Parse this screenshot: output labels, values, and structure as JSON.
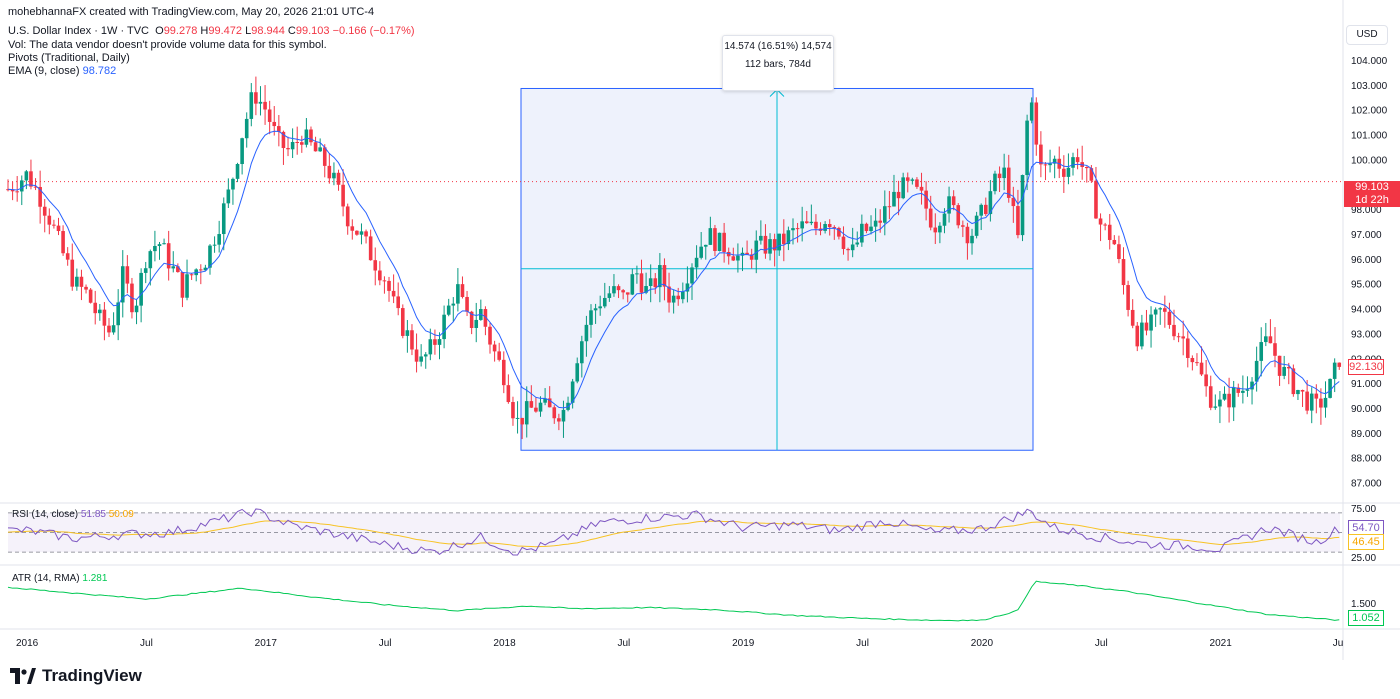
{
  "header": {
    "credit": "mohebhannaFX created with TradingView.com, May 20, 2026 21:01 UTC-4",
    "symbol": "U.S. Dollar Index · 1W · TVC",
    "o_label": "O",
    "o_value": "99.278",
    "h_label": "H",
    "h_value": "99.472",
    "l_label": "L",
    "l_value": "98.944",
    "c_label": "C",
    "c_value": "99.103",
    "change": "−0.166 (−0.17%)",
    "vol_note": "Vol: The data vendor doesn't provide volume data for this symbol.",
    "pivots": "Pivots (Traditional, Daily)",
    "ema_label": "EMA (9, close)",
    "ema_value": "98.782"
  },
  "currency_button": "USD",
  "measure": {
    "line1": "14.574 (16.51%) 14,574",
    "line2": "112 bars, 784d"
  },
  "price_tags": {
    "last": "99.103",
    "countdown": "1d 22h",
    "right_edge": "92.130"
  },
  "rsi": {
    "label": "RSI (14, close)",
    "value1": "51.85",
    "value2": "50.09",
    "tag1": "54.70",
    "tag2": "46.45"
  },
  "atr": {
    "label": "ATR (14, RMA)",
    "value": "1.281",
    "tag": "1.052"
  },
  "brand": "TradingView",
  "colors": {
    "up": "#089981",
    "down": "#f23645",
    "ema": "#2962ff",
    "rsi": "#7e57c2",
    "rsi_ma": "#f7c325",
    "atr": "#00c853",
    "measure_fill": "#e8edfb",
    "measure_border": "#2962ff",
    "crosshair": "#00bcd4"
  },
  "chart_data": [
    {
      "type": "candlestick",
      "title": "U.S. Dollar Index · 1W · TVC",
      "ylabel": "",
      "ylim": [
        86.5,
        104.8
      ],
      "yticks": [
        "87.000",
        "88.000",
        "89.000",
        "90.000",
        "91.000",
        "92.000",
        "93.000",
        "94.000",
        "95.000",
        "96.000",
        "97.000",
        "98.000",
        "99.000",
        "100.000",
        "101.000",
        "102.000",
        "103.000",
        "104.000"
      ],
      "x_tick_labels": [
        "2016",
        "Jul",
        "2017",
        "Jul",
        "2018",
        "Jul",
        "2019",
        "Jul",
        "2020",
        "Jul",
        "2021",
        "Ju"
      ],
      "close_path": [
        [
          2015.92,
          98.8
        ],
        [
          2016.0,
          99.4
        ],
        [
          2016.05,
          98.6
        ],
        [
          2016.1,
          97.5
        ],
        [
          2016.15,
          96.2
        ],
        [
          2016.2,
          95.0
        ],
        [
          2016.25,
          94.6
        ],
        [
          2016.3,
          93.6
        ],
        [
          2016.35,
          93.0
        ],
        [
          2016.4,
          95.3
        ],
        [
          2016.45,
          94.0
        ],
        [
          2016.5,
          96.2
        ],
        [
          2016.55,
          96.7
        ],
        [
          2016.6,
          95.8
        ],
        [
          2016.65,
          94.8
        ],
        [
          2016.7,
          95.5
        ],
        [
          2016.75,
          96.0
        ],
        [
          2016.8,
          97.3
        ],
        [
          2016.85,
          98.8
        ],
        [
          2016.9,
          101.0
        ],
        [
          2016.95,
          102.7
        ],
        [
          2017.0,
          102.0
        ],
        [
          2017.05,
          100.7
        ],
        [
          2017.1,
          100.3
        ],
        [
          2017.15,
          101.0
        ],
        [
          2017.2,
          100.4
        ],
        [
          2017.25,
          99.8
        ],
        [
          2017.3,
          98.8
        ],
        [
          2017.35,
          97.5
        ],
        [
          2017.4,
          96.9
        ],
        [
          2017.45,
          96.0
        ],
        [
          2017.5,
          95.2
        ],
        [
          2017.55,
          93.7
        ],
        [
          2017.6,
          92.8
        ],
        [
          2017.65,
          91.8
        ],
        [
          2017.7,
          92.5
        ],
        [
          2017.75,
          93.6
        ],
        [
          2017.8,
          94.9
        ],
        [
          2017.85,
          93.3
        ],
        [
          2017.9,
          93.9
        ],
        [
          2017.95,
          92.4
        ],
        [
          2018.0,
          91.3
        ],
        [
          2018.05,
          89.4
        ],
        [
          2018.1,
          89.9
        ],
        [
          2018.15,
          90.1
        ],
        [
          2018.2,
          89.8
        ],
        [
          2018.25,
          89.9
        ],
        [
          2018.3,
          92.0
        ],
        [
          2018.35,
          93.6
        ],
        [
          2018.4,
          94.3
        ],
        [
          2018.45,
          94.7
        ],
        [
          2018.5,
          94.4
        ],
        [
          2018.55,
          95.5
        ],
        [
          2018.6,
          94.6
        ],
        [
          2018.65,
          95.4
        ],
        [
          2018.7,
          94.3
        ],
        [
          2018.75,
          95.1
        ],
        [
          2018.8,
          96.2
        ],
        [
          2018.85,
          97.0
        ],
        [
          2018.9,
          96.6
        ],
        [
          2018.95,
          96.4
        ],
        [
          2019.0,
          95.8
        ],
        [
          2019.05,
          96.5
        ],
        [
          2019.1,
          96.5
        ],
        [
          2019.15,
          96.6
        ],
        [
          2019.2,
          97.0
        ],
        [
          2019.25,
          97.3
        ],
        [
          2019.3,
          97.2
        ],
        [
          2019.35,
          97.7
        ],
        [
          2019.4,
          97.2
        ],
        [
          2019.45,
          96.1
        ],
        [
          2019.5,
          97.1
        ],
        [
          2019.55,
          97.2
        ],
        [
          2019.6,
          98.0
        ],
        [
          2019.65,
          98.8
        ],
        [
          2019.7,
          98.9
        ],
        [
          2019.75,
          98.4
        ],
        [
          2019.8,
          97.3
        ],
        [
          2019.85,
          98.3
        ],
        [
          2019.9,
          97.7
        ],
        [
          2019.95,
          96.9
        ],
        [
          2020.0,
          97.8
        ],
        [
          2020.05,
          99.0
        ],
        [
          2020.1,
          99.5
        ],
        [
          2020.15,
          96.7
        ],
        [
          2020.2,
          102.8
        ],
        [
          2020.25,
          99.4
        ],
        [
          2020.3,
          100.0
        ],
        [
          2020.35,
          99.6
        ],
        [
          2020.4,
          100.2
        ],
        [
          2020.45,
          99.0
        ],
        [
          2020.5,
          97.3
        ],
        [
          2020.55,
          96.8
        ],
        [
          2020.6,
          94.6
        ],
        [
          2020.65,
          92.9
        ],
        [
          2020.7,
          93.2
        ],
        [
          2020.75,
          93.9
        ],
        [
          2020.8,
          93.3
        ],
        [
          2020.85,
          92.7
        ],
        [
          2020.9,
          91.7
        ],
        [
          2020.95,
          90.5
        ],
        [
          2021.0,
          90.1
        ],
        [
          2021.05,
          90.5
        ],
        [
          2021.1,
          90.8
        ],
        [
          2021.15,
          91.9
        ],
        [
          2021.2,
          92.8
        ],
        [
          2021.25,
          91.6
        ],
        [
          2021.3,
          91.0
        ],
        [
          2021.35,
          90.4
        ],
        [
          2021.4,
          90.0
        ],
        [
          2021.45,
          90.6
        ],
        [
          2021.5,
          92.1
        ]
      ]
    },
    {
      "type": "line",
      "title": "RSI (14, close)",
      "ylim": [
        22,
        77
      ],
      "yticks": [
        "25.00",
        "75.00"
      ],
      "values_path": [
        [
          2016.0,
          52
        ],
        [
          2016.2,
          44
        ],
        [
          2016.4,
          48
        ],
        [
          2016.6,
          50
        ],
        [
          2016.8,
          62
        ],
        [
          2016.95,
          72
        ],
        [
          2017.1,
          58
        ],
        [
          2017.3,
          48
        ],
        [
          2017.5,
          38
        ],
        [
          2017.7,
          30
        ],
        [
          2017.9,
          45
        ],
        [
          2018.05,
          30
        ],
        [
          2018.2,
          38
        ],
        [
          2018.4,
          60
        ],
        [
          2018.6,
          65
        ],
        [
          2018.8,
          68
        ],
        [
          2019.0,
          55
        ],
        [
          2019.2,
          58
        ],
        [
          2019.4,
          52
        ],
        [
          2019.6,
          62
        ],
        [
          2019.8,
          50
        ],
        [
          2020.0,
          54
        ],
        [
          2020.2,
          72
        ],
        [
          2020.3,
          55
        ],
        [
          2020.5,
          45
        ],
        [
          2020.7,
          38
        ],
        [
          2020.9,
          36
        ],
        [
          2021.0,
          33
        ],
        [
          2021.2,
          55
        ],
        [
          2021.4,
          40
        ],
        [
          2021.5,
          54.7
        ]
      ]
    },
    {
      "type": "line",
      "title": "ATR (14, RMA)",
      "ylim": [
        0.8,
        2.4
      ],
      "yticks": [
        "1.500"
      ],
      "values_path": [
        [
          2015.92,
          1.9
        ],
        [
          2016.2,
          1.75
        ],
        [
          2016.5,
          1.6
        ],
        [
          2016.9,
          1.88
        ],
        [
          2017.2,
          1.65
        ],
        [
          2017.5,
          1.45
        ],
        [
          2017.8,
          1.3
        ],
        [
          2018.1,
          1.42
        ],
        [
          2018.3,
          1.35
        ],
        [
          2018.6,
          1.38
        ],
        [
          2018.9,
          1.32
        ],
        [
          2019.2,
          1.18
        ],
        [
          2019.5,
          1.1
        ],
        [
          2019.8,
          1.05
        ],
        [
          2020.0,
          1.05
        ],
        [
          2020.15,
          1.3
        ],
        [
          2020.22,
          2.05
        ],
        [
          2020.4,
          1.95
        ],
        [
          2020.6,
          1.8
        ],
        [
          2020.8,
          1.6
        ],
        [
          2021.0,
          1.4
        ],
        [
          2021.2,
          1.2
        ],
        [
          2021.5,
          1.05
        ]
      ]
    }
  ]
}
